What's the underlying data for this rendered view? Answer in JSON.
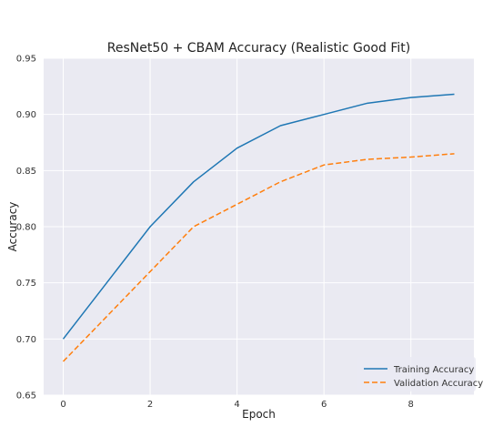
{
  "chart_data": {
    "type": "line",
    "title": "ResNet50 + CBAM Accuracy (Realistic Good Fit)",
    "xlabel": "Epoch",
    "ylabel": "Accuracy",
    "x": [
      0,
      1,
      2,
      3,
      4,
      5,
      6,
      7,
      8,
      9
    ],
    "xlim": [
      -0.45,
      9.45
    ],
    "ylim": [
      0.65,
      0.95
    ],
    "xticks": [
      "0",
      "2",
      "4",
      "6",
      "8"
    ],
    "yticks": [
      "0.65",
      "0.70",
      "0.75",
      "0.80",
      "0.85",
      "0.90",
      "0.95"
    ],
    "grid": true,
    "legend_position": "bottom-right",
    "background_color": "#eaeaf2",
    "series": [
      {
        "name": "Training Accuracy",
        "values": [
          0.7,
          0.75,
          0.8,
          0.84,
          0.87,
          0.89,
          0.9,
          0.91,
          0.915,
          0.918
        ],
        "color": "#1f77b4",
        "style": "solid"
      },
      {
        "name": "Validation Accuracy",
        "values": [
          0.68,
          0.72,
          0.76,
          0.8,
          0.82,
          0.84,
          0.855,
          0.86,
          0.862,
          0.865
        ],
        "color": "#ff7f0e",
        "style": "dashed"
      }
    ]
  }
}
